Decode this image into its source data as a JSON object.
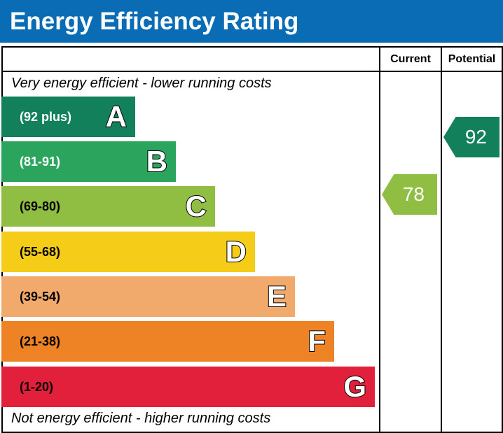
{
  "title": "Energy Efficiency Rating",
  "chart_data": {
    "type": "bar",
    "title": "Energy Efficiency Rating",
    "columns": [
      "Current",
      "Potential"
    ],
    "top_note": "Very energy efficient - lower running costs",
    "bottom_note": "Not energy efficient - higher running costs",
    "bands": [
      {
        "letter": "A",
        "range": "(92 plus)",
        "color": "#12805a",
        "text_color": "#ffffff"
      },
      {
        "letter": "B",
        "range": "(81-91)",
        "color": "#2ba55e",
        "text_color": "#ffffff"
      },
      {
        "letter": "C",
        "range": "(69-80)",
        "color": "#8fbe43",
        "text_color": "#000000"
      },
      {
        "letter": "D",
        "range": "(55-68)",
        "color": "#f5cc18",
        "text_color": "#000000"
      },
      {
        "letter": "E",
        "range": "(39-54)",
        "color": "#f2aa6c",
        "text_color": "#000000"
      },
      {
        "letter": "F",
        "range": "(21-38)",
        "color": "#ee8326",
        "text_color": "#000000"
      },
      {
        "letter": "G",
        "range": "(1-20)",
        "color": "#e2203c",
        "text_color": "#000000"
      }
    ],
    "current": {
      "value": "78",
      "band": "C",
      "color": "#8fbe43"
    },
    "potential": {
      "value": "92",
      "band": "A",
      "color": "#12805a"
    }
  }
}
